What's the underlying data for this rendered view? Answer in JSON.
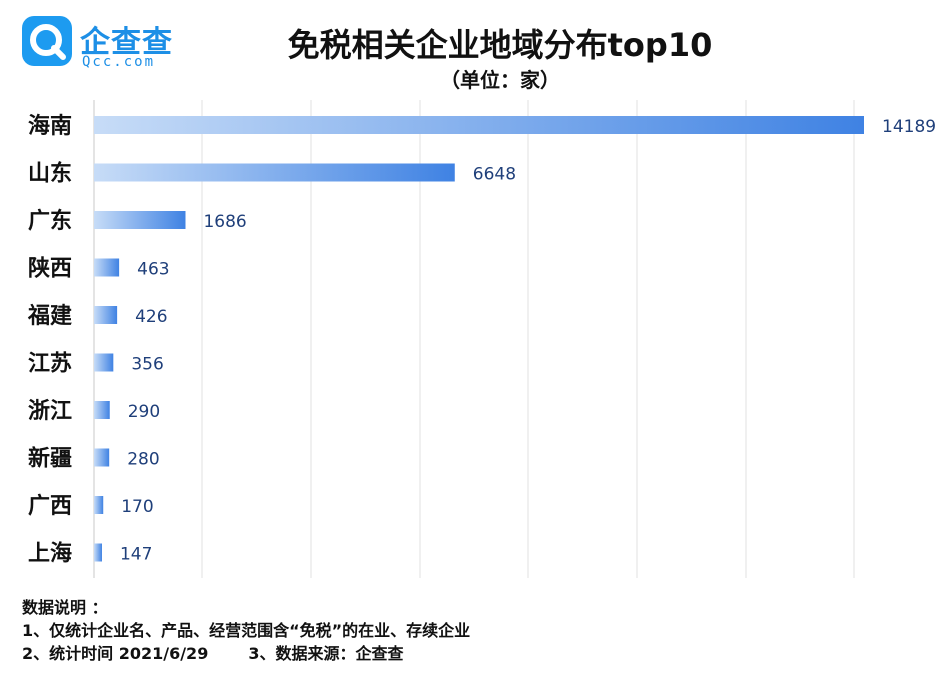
{
  "brand": {
    "name_cn": "企查查",
    "name_en": "Qcc.com",
    "color": "#1d9bf0"
  },
  "chart_data": {
    "type": "bar",
    "orientation": "horizontal",
    "title": "免税相关企业地域分布top10",
    "subtitle": "（单位：家）",
    "categories": [
      "海南",
      "山东",
      "广东",
      "陕西",
      "福建",
      "江苏",
      "浙江",
      "新疆",
      "广西",
      "上海"
    ],
    "values": [
      14189,
      6648,
      1686,
      463,
      426,
      356,
      290,
      280,
      170,
      147
    ],
    "xlim": [
      0,
      14189
    ],
    "grid": true,
    "legend": "none",
    "bar_gradient": [
      "#c7dcf7",
      "#3f82e3"
    ],
    "value_label_color": "#1f3f7a"
  },
  "notes": {
    "heading": "数据说明 ：",
    "line1": "1、仅统计企业名、产品、经营范围含“免税”的在业、存续企业",
    "line2": "2、统计时间 2021/6/29",
    "line3": "3、数据来源：企查查"
  }
}
